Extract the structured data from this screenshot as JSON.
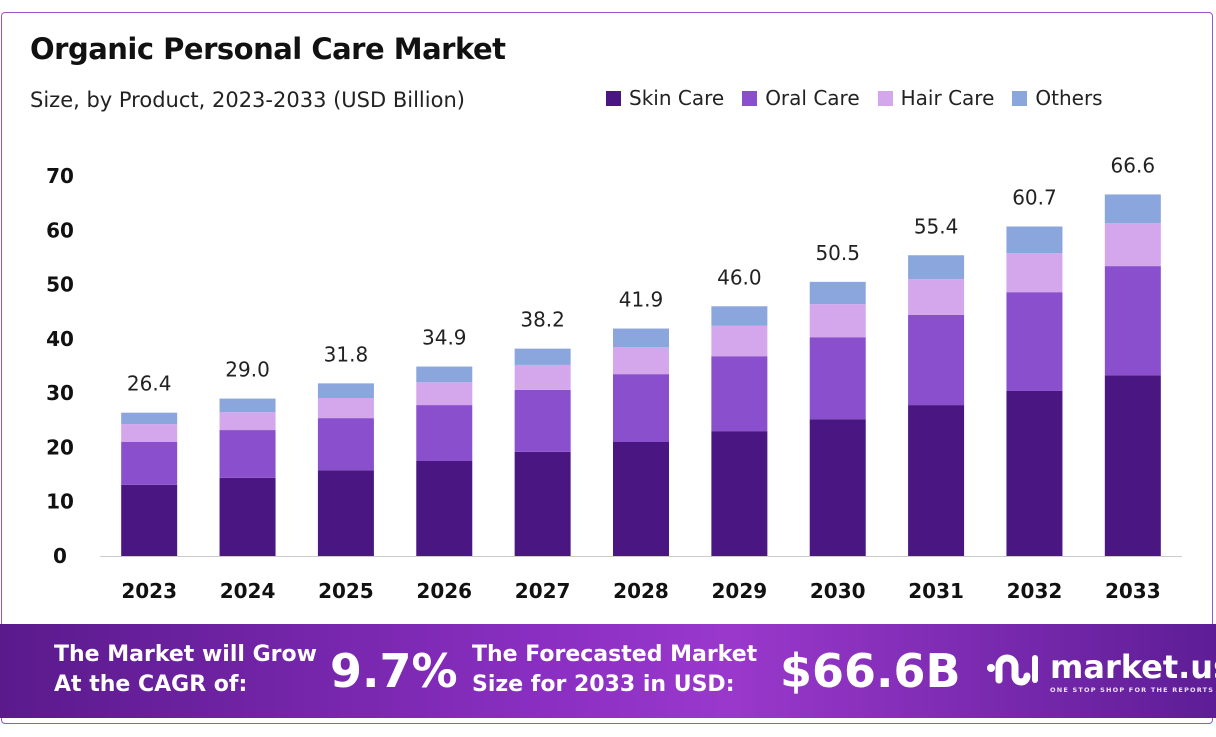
{
  "chart_data": {
    "type": "bar",
    "stacked": true,
    "title": "Organic Personal Care Market",
    "subtitle": "Size, by Product, 2023-2033 (USD Billion)",
    "xlabel": "",
    "ylabel": "",
    "ylim": [
      0,
      70
    ],
    "yticks": [
      0,
      10,
      20,
      30,
      40,
      50,
      60,
      70
    ],
    "grid": false,
    "legend_position": "top-right",
    "categories": [
      "2023",
      "2024",
      "2025",
      "2026",
      "2027",
      "2028",
      "2029",
      "2030",
      "2031",
      "2032",
      "2033"
    ],
    "totals": [
      "26.4",
      "29.0",
      "31.8",
      "34.9",
      "38.2",
      "41.9",
      "46.0",
      "50.5",
      "55.4",
      "60.7",
      "66.6"
    ],
    "series": [
      {
        "name": "Skin Care",
        "color": "#4a1782",
        "values": [
          13.1,
          14.4,
          15.8,
          17.5,
          19.2,
          21.0,
          23.0,
          25.2,
          27.8,
          30.4,
          33.3
        ]
      },
      {
        "name": "Oral Care",
        "color": "#8a4fcc",
        "values": [
          7.9,
          8.8,
          9.6,
          10.3,
          11.4,
          12.5,
          13.8,
          15.1,
          16.6,
          18.2,
          20.1
        ]
      },
      {
        "name": "Hair Care",
        "color": "#d4a6ec",
        "values": [
          3.3,
          3.3,
          3.7,
          4.2,
          4.6,
          5.0,
          5.6,
          6.1,
          6.6,
          7.2,
          7.9
        ]
      },
      {
        "name": "Others",
        "color": "#8aa6dc",
        "values": [
          2.1,
          2.5,
          2.7,
          2.9,
          3.0,
          3.4,
          3.6,
          4.1,
          4.4,
          4.9,
          5.3
        ]
      }
    ]
  },
  "banner": {
    "cagr_text_line1": "The Market will Grow",
    "cagr_text_line2": "At the CAGR of:",
    "cagr_value": "9.7%",
    "forecast_text_line1": "The Forecasted Market",
    "forecast_text_line2": "Size for 2033 in USD:",
    "forecast_value": "$66.6B",
    "brand_name": "market.us",
    "brand_tagline": "ONE STOP SHOP FOR THE REPORTS"
  }
}
